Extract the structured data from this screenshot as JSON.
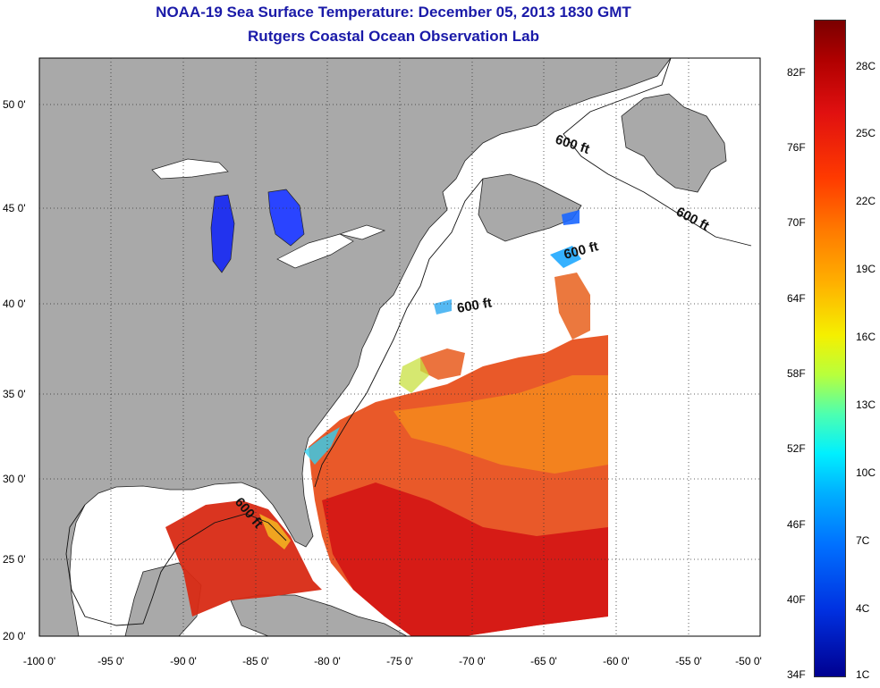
{
  "title_line1": "NOAA-19 Sea Surface Temperature:  December 05, 2013 1830 GMT",
  "title_line2": "Rutgers Coastal Ocean Observation Lab",
  "lat_labels": [
    "50 0'",
    "45 0'",
    "40 0'",
    "35 0'",
    "30 0'",
    "25 0'",
    "20 0'"
  ],
  "lon_labels": [
    "-100 0'",
    "-95 0'",
    "-90 0'",
    "-85 0'",
    "-80 0'",
    "-75 0'",
    "-70 0'",
    "-65 0'",
    "-60 0'",
    "-55 0'",
    "-50 0'"
  ],
  "contour_labels": [
    "600 ft",
    "600 ft",
    "600 ft",
    "600 ft",
    "600 ft"
  ],
  "colorbar": {
    "fahrenheit": [
      "82F",
      "76F",
      "70F",
      "64F",
      "58F",
      "52F",
      "46F",
      "40F",
      "34F"
    ],
    "celsius": [
      "28C",
      "25C",
      "22C",
      "19C",
      "16C",
      "13C",
      "10C",
      "7C",
      "4C",
      "1C"
    ]
  },
  "colors": {
    "title": "#1a1aa8",
    "land": "#a9a9a9",
    "ocean_nodata": "#ffffff",
    "warm": "#d81818",
    "cold": "#1a3cff"
  }
}
